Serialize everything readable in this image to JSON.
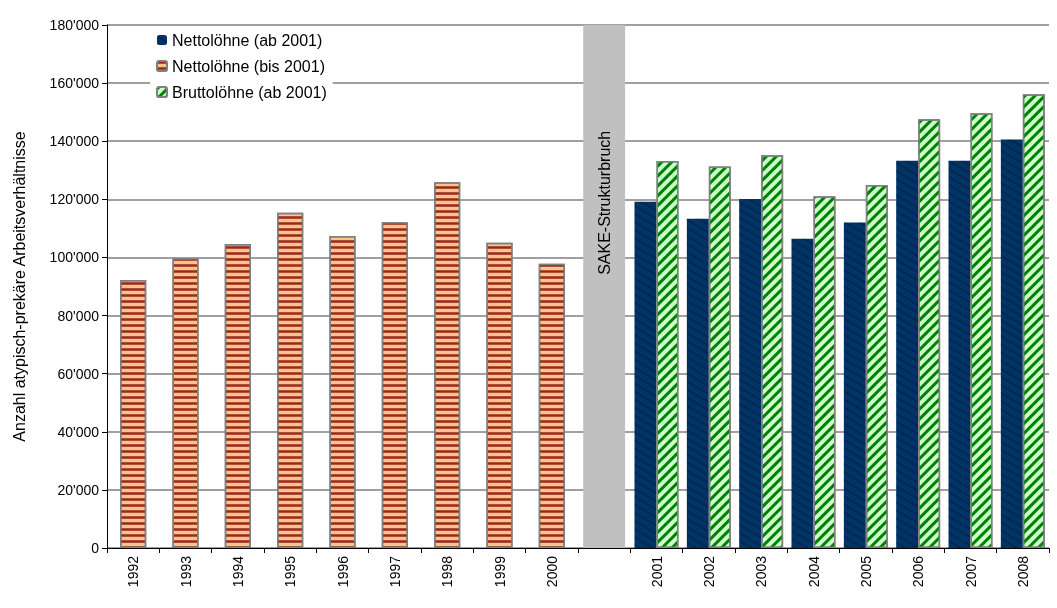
{
  "chart_data": {
    "type": "bar",
    "ylabel": "Anzahl atypisch-prekäre Arbeitsverhältnisse",
    "categories": [
      "1992",
      "1993",
      "1994",
      "1995",
      "1996",
      "1997",
      "1998",
      "1999",
      "2000",
      null,
      "2001",
      "2002",
      "2003",
      "2004",
      "2005",
      "2006",
      "2007",
      "2008"
    ],
    "series": [
      {
        "name": "Nettolöhne (ab 2001)",
        "color": "#003366",
        "values": [
          null,
          null,
          null,
          null,
          null,
          null,
          null,
          null,
          null,
          null,
          119200,
          113300,
          120100,
          106400,
          112000,
          133300,
          133300,
          140600
        ]
      },
      {
        "name": "Nettolöhne (bis 2001)",
        "color": "#f9c38e",
        "values": [
          92200,
          99700,
          104600,
          115400,
          107400,
          112100,
          125900,
          105100,
          97800,
          null,
          null,
          null,
          null,
          null,
          null,
          null,
          null,
          null
        ]
      },
      {
        "name": "Bruttolöhne (ab 2001)",
        "color": "#ccffcc",
        "values": [
          null,
          null,
          null,
          null,
          null,
          null,
          null,
          null,
          null,
          null,
          133200,
          131300,
          135200,
          121100,
          124900,
          147600,
          149600,
          156200
        ]
      }
    ],
    "ylim": [
      0,
      180000
    ],
    "yticks": [
      {
        "value": 0,
        "label": "0"
      },
      {
        "value": 20000,
        "label": "20'000"
      },
      {
        "value": 40000,
        "label": "40'000"
      },
      {
        "value": 60000,
        "label": "60'000"
      },
      {
        "value": 80000,
        "label": "80'000"
      },
      {
        "value": 100000,
        "label": "100'000"
      },
      {
        "value": 120000,
        "label": "120'000"
      },
      {
        "value": 140000,
        "label": "140'000"
      },
      {
        "value": 160000,
        "label": "160'000"
      },
      {
        "value": 180000,
        "label": "180'000"
      }
    ],
    "bands": [
      {
        "axis": "x",
        "from": "2000",
        "to": "2001",
        "label": "SAKE-Strukturbruch",
        "color": "#c0c0c0"
      }
    ],
    "grid": "y",
    "legend": "top left"
  }
}
